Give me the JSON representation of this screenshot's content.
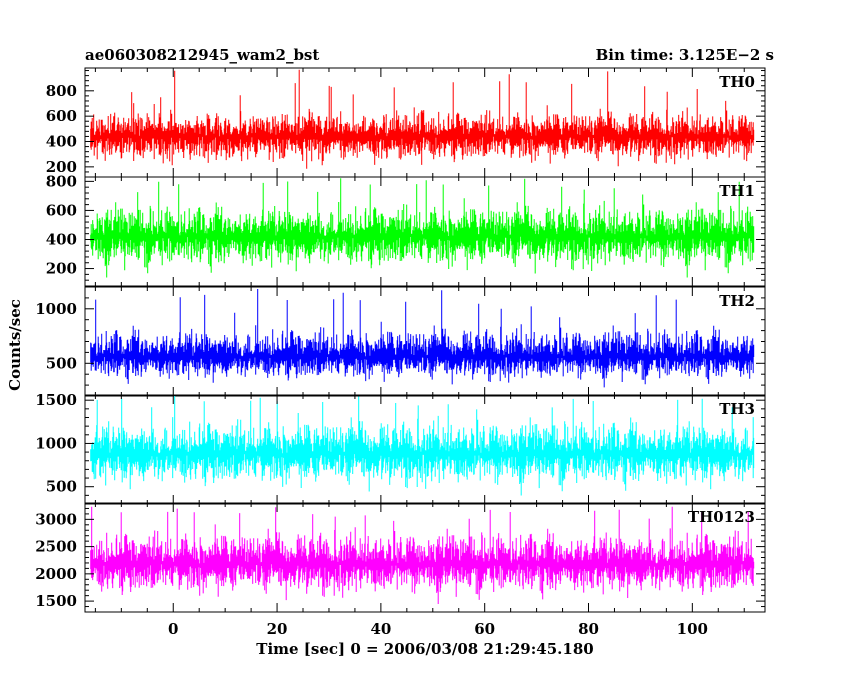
{
  "header": {
    "title": "ae060308212945_wam2_bst",
    "bin_time": "Bin time: 3.125E−2 s"
  },
  "axes": {
    "xlabel": "Time [sec] 0 = 2006/03/08 21:29:45.180",
    "ylabel": "Counts/sec"
  },
  "chart_data": {
    "type": "line",
    "title": "ae060308212945_wam2_bst",
    "subtitle": "Bin time: 3.125E−2 s",
    "xlabel": "Time [sec] 0 = 2006/03/08 21:29:45.180",
    "ylabel": "Counts/sec",
    "xlim": [
      -17,
      114
    ],
    "x_data_range": [
      -15.9,
      111.9
    ],
    "bin_time": 0.03125,
    "x_ticks": [
      0,
      20,
      40,
      60,
      80,
      100
    ],
    "grid": false,
    "panels": [
      {
        "name": "TH0",
        "color": "#ff0000",
        "ylim": [
          120,
          980
        ],
        "y_ticks": [
          200,
          400,
          600,
          800
        ],
        "typical_range": [
          180,
          700
        ],
        "mean": 440,
        "peak": 980
      },
      {
        "name": "TH1",
        "color": "#00ff00",
        "ylim": [
          80,
          830
        ],
        "y_ticks": [
          200,
          400,
          600,
          800
        ],
        "typical_range": [
          140,
          700
        ],
        "mean": 420,
        "peak": 830
      },
      {
        "name": "TH2",
        "color": "#0000ff",
        "ylim": [
          200,
          1200
        ],
        "y_ticks": [
          500,
          1000
        ],
        "typical_range": [
          280,
          900
        ],
        "mean": 560,
        "peak": 1200
      },
      {
        "name": "TH3",
        "color": "#00ffff",
        "ylim": [
          300,
          1560
        ],
        "y_ticks": [
          500,
          1000,
          1500
        ],
        "typical_range": [
          400,
          1380
        ],
        "mean": 880,
        "peak": 1560
      },
      {
        "name": "TH0123",
        "color": "#ff00ff",
        "ylim": [
          1300,
          3300
        ],
        "y_ticks": [
          1500,
          2000,
          2500,
          3000
        ],
        "typical_range": [
          1450,
          2950
        ],
        "mean": 2180,
        "peak": 3250
      }
    ]
  }
}
